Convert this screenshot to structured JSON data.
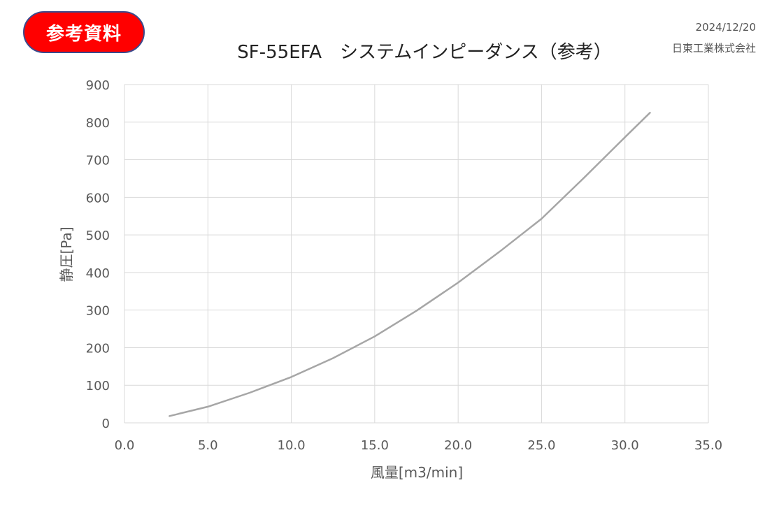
{
  "badge": "参考資料",
  "date": "2024/12/20",
  "company": "日東工業株式会社",
  "colors": {
    "badge_fill": "#ff0000",
    "badge_border": "#3b4a8c",
    "curve": "#a6a6a6",
    "grid": "#d9d9d9"
  },
  "chart_data": {
    "type": "line",
    "title": "SF-55EFA　システムインピーダンス（参考）",
    "xlabel": "風量[m3/min]",
    "ylabel": "静圧[Pa]",
    "xlim": [
      0,
      35
    ],
    "ylim": [
      0,
      900
    ],
    "grid": true,
    "x_ticks": [
      "0.0",
      "5.0",
      "10.0",
      "15.0",
      "20.0",
      "25.0",
      "30.0",
      "35.0"
    ],
    "y_ticks": [
      "0",
      "100",
      "200",
      "300",
      "400",
      "500",
      "600",
      "700",
      "800",
      "900"
    ],
    "series": [
      {
        "x": [
          2.7,
          5.0,
          7.5,
          10.0,
          12.5,
          15.0,
          17.5,
          20.0,
          22.5,
          25.0,
          27.5,
          30.0,
          31.5
        ],
        "y": [
          18,
          43,
          80,
          122,
          172,
          230,
          298,
          373,
          456,
          543,
          650,
          760,
          825
        ]
      }
    ]
  }
}
